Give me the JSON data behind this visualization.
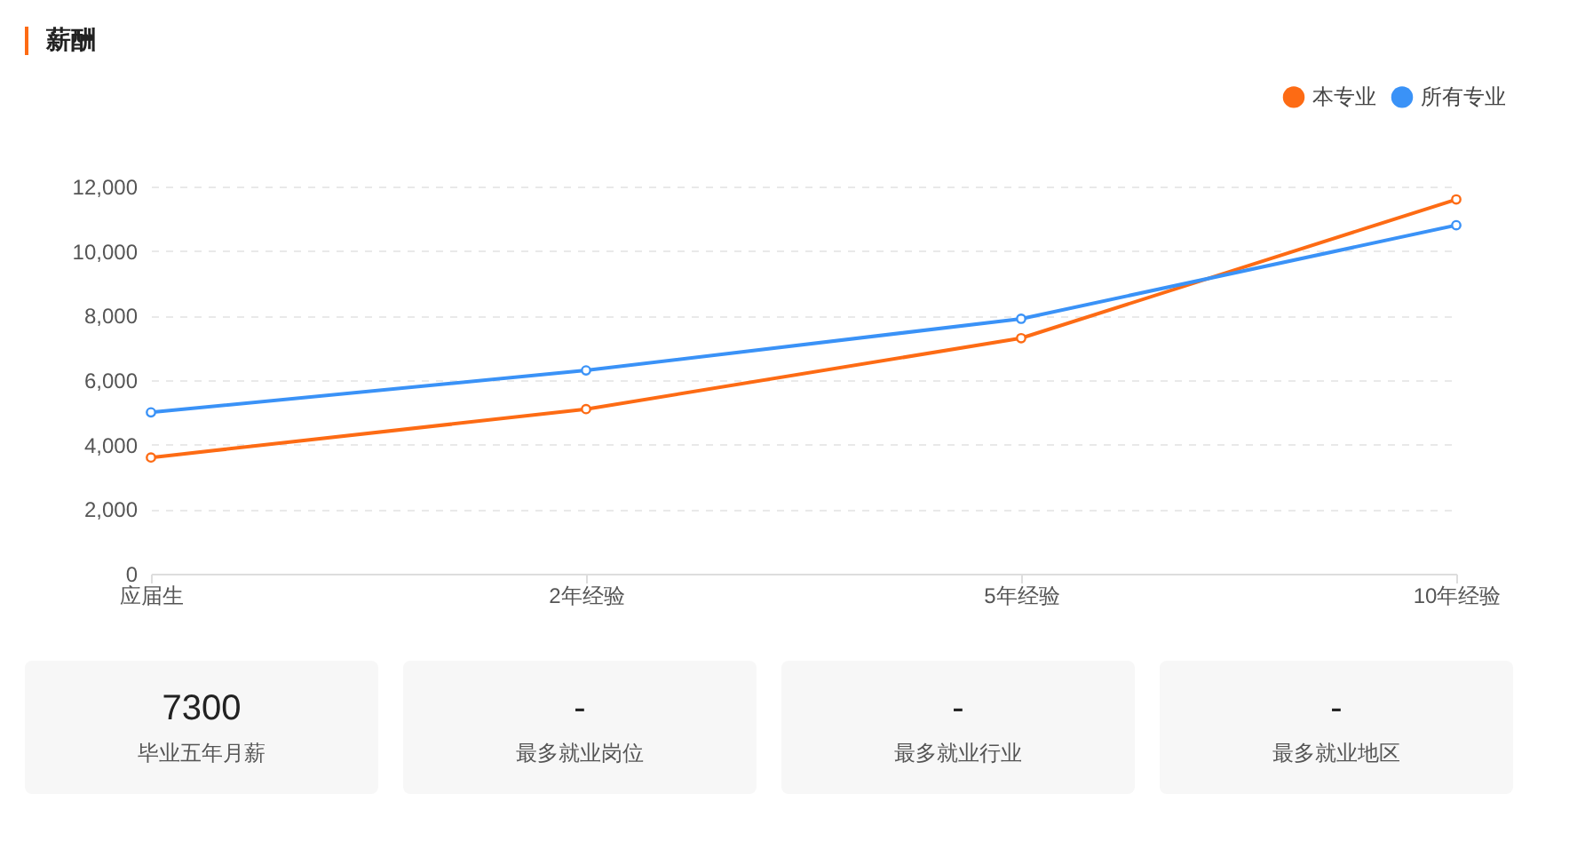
{
  "chart_data": [
    {
      "type": "line",
      "title": "薪酬",
      "categories": [
        "应届生",
        "2年经验",
        "5年经验",
        "10年经验"
      ],
      "series": [
        {
          "name": "本专业",
          "color": "#fd6b14",
          "values": [
            3600,
            5100,
            7300,
            11600
          ]
        },
        {
          "name": "所有专业",
          "color": "#3a92f7",
          "values": [
            5000,
            6300,
            7900,
            10800
          ]
        }
      ],
      "ylim": [
        0,
        12000
      ],
      "yticks": [
        0,
        {
          "value": 2000,
          "label": "2,000"
        },
        {
          "value": 4000,
          "label": "4,000"
        },
        {
          "value": 6000,
          "label": "6,000"
        },
        {
          "value": 8000,
          "label": "8,000"
        },
        {
          "value": 10000,
          "label": "10,000"
        },
        {
          "value": 12000,
          "label": "12,000"
        }
      ],
      "grid": "y",
      "legend": "top right",
      "marker": "circle",
      "line_style": "solid"
    },
    {
      "type": "other",
      "annotations": [
        "7300",
        "毕业五年月薪",
        "-",
        "最多就业岗位",
        "-",
        "最多就业行业",
        "-",
        "最多就业地区"
      ]
    }
  ]
}
